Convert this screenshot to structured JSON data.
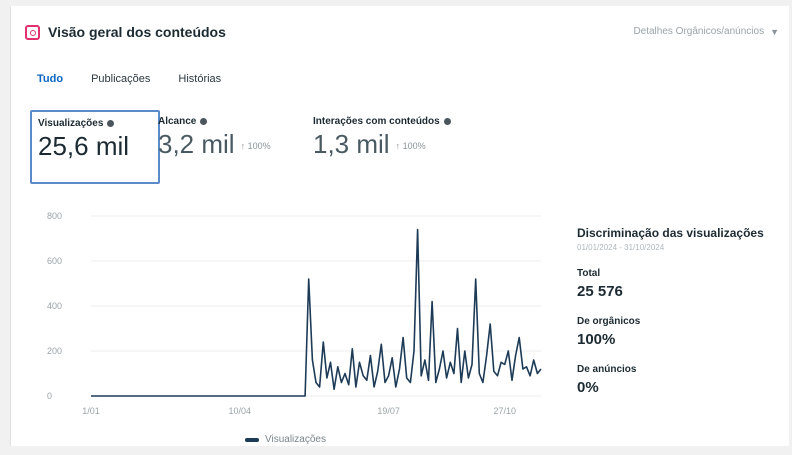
{
  "header": {
    "title": "Visão geral dos conteúdos",
    "details_label": "Detalhes  Orgânicos/anúncios",
    "icon": "instagram-icon"
  },
  "tabs": [
    {
      "label": "Tudo",
      "active": true
    },
    {
      "label": "Publicações",
      "active": false
    },
    {
      "label": "Histórias",
      "active": false
    }
  ],
  "metrics": {
    "views": {
      "label": "Visualizações",
      "value": "25,6 mil"
    },
    "reach": {
      "label": "Alcance",
      "value": "3,2 mil",
      "change": "↑ 100%"
    },
    "interactions": {
      "label": "Interações com conteúdos",
      "value": "1,3 mil",
      "change": "↑ 100%"
    }
  },
  "breakdown": {
    "title": "Discriminação das visualizações",
    "date_range": "01/01/2024 - 31/10/2024",
    "total_label": "Total",
    "total_value": "25 576",
    "organic_label": "De orgânicos",
    "organic_value": "100%",
    "ads_label": "De anúncios",
    "ads_value": "0%"
  },
  "legend": {
    "label": "Visualizações"
  },
  "colors": {
    "line": "#1d3b57",
    "accent": "#0a66c2",
    "selected_border": "#5b8ac9"
  },
  "chart_data": {
    "type": "line",
    "x_ticks": [
      "1/01",
      "10/04",
      "19/07",
      "27/10"
    ],
    "y_ticks": [
      0,
      200,
      400,
      600,
      800
    ],
    "ylim": [
      0,
      800
    ],
    "series": [
      {
        "name": "Visualizações",
        "values": [
          0,
          0,
          0,
          0,
          0,
          0,
          0,
          0,
          0,
          0,
          0,
          0,
          0,
          0,
          0,
          0,
          0,
          0,
          0,
          0,
          0,
          0,
          0,
          0,
          0,
          0,
          0,
          0,
          0,
          0,
          0,
          0,
          0,
          0,
          0,
          0,
          0,
          0,
          0,
          0,
          0,
          0,
          0,
          0,
          0,
          0,
          0,
          0,
          0,
          0,
          0,
          0,
          0,
          0,
          0,
          0,
          0,
          0,
          0,
          0,
          520,
          160,
          60,
          40,
          240,
          80,
          150,
          30,
          130,
          60,
          100,
          50,
          210,
          40,
          150,
          90,
          70,
          180,
          40,
          110,
          230,
          60,
          90,
          170,
          40,
          120,
          260,
          80,
          60,
          200,
          740,
          90,
          160,
          70,
          420,
          60,
          120,
          200,
          80,
          150,
          100,
          300,
          60,
          200,
          80,
          140,
          520,
          100,
          60,
          180,
          320,
          110,
          90,
          150,
          140,
          200,
          70,
          180,
          260,
          120,
          130,
          90,
          160,
          100,
          120
        ]
      }
    ]
  }
}
